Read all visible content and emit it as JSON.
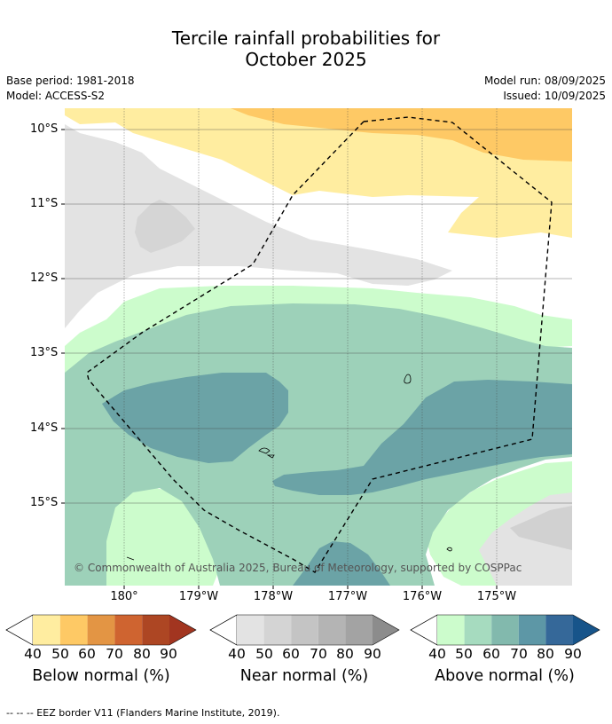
{
  "title": {
    "line1": "Tercile rainfall probabilities for",
    "line2": "October 2025"
  },
  "meta": {
    "base_period": "Base period: 1981-2018",
    "model": "Model: ACCESS-S2",
    "model_run": "Model run: 08/09/2025",
    "issued": "Issued: 10/09/2025"
  },
  "map": {
    "lat_labels": [
      "10°S",
      "11°S",
      "12°S",
      "13°S",
      "14°S",
      "15°S"
    ],
    "lon_labels": [
      "180°",
      "179°W",
      "178°W",
      "177°W",
      "176°W",
      "175°W"
    ],
    "copyright": "© Commonwealth of Australia 2025, Bureau of Meteorology, supported by COSPPac",
    "colors": {
      "below_light": "#ffeda0",
      "below_mid": "#fec965",
      "near_light": "#e3e3e3",
      "near_mid": "#d1d1d1",
      "above_light": "#ccfccc",
      "above_mid": "#9dd1b9",
      "above_dark": "#6ba3a6",
      "above_darker": "#5e97a6"
    }
  },
  "legend": {
    "ticks": [
      "40",
      "50",
      "60",
      "70",
      "80",
      "90"
    ],
    "below": {
      "title": "Below normal (%)",
      "colors": [
        "#ffeda0",
        "#fec965",
        "#e39544",
        "#cf6430",
        "#ad4623",
        "#a23520"
      ]
    },
    "near": {
      "title": "Near normal (%)",
      "colors": [
        "#e3e3e3",
        "#d4d4d4",
        "#c4c4c4",
        "#b4b4b4",
        "#a3a3a3",
        "#8c8c8c"
      ]
    },
    "above": {
      "title": "Above normal (%)",
      "colors": [
        "#ccfccc",
        "#a6dbbf",
        "#82b9ad",
        "#5d97a6",
        "#356899",
        "#17548a"
      ]
    }
  },
  "footnote": "--  --  -- EEZ border V11 (Flanders Marine Institute, 2019)."
}
